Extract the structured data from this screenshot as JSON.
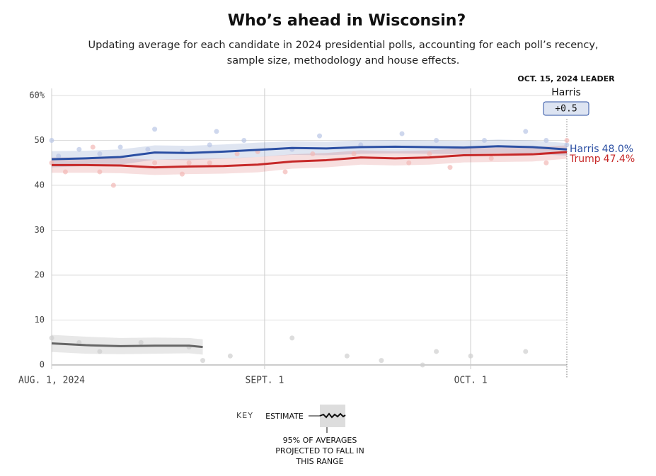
{
  "chart_data": {
    "type": "line",
    "title": "Who’s ahead in Wisconsin?",
    "subtitle": [
      "Updating average for each candidate in 2024 presidential polls, accounting for each poll’s recency,",
      "sample size, methodology and house effects."
    ],
    "x": [
      "2024-08-01",
      "2024-08-06",
      "2024-08-11",
      "2024-08-16",
      "2024-08-21",
      "2024-08-26",
      "2024-08-31",
      "2024-09-05",
      "2024-09-10",
      "2024-09-15",
      "2024-09-20",
      "2024-09-25",
      "2024-09-30",
      "2024-10-05",
      "2024-10-10",
      "2024-10-15"
    ],
    "xlim": [
      "2024-08-01",
      "2024-10-15"
    ],
    "xticks": [
      {
        "value": "2024-08-01",
        "label": "AUG. 1, 2024"
      },
      {
        "value": "2024-09-01",
        "label": "SEPT. 1"
      },
      {
        "value": "2024-10-01",
        "label": "OCT. 1"
      }
    ],
    "ylim": [
      0,
      60
    ],
    "yticks": [
      0,
      10,
      20,
      30,
      40,
      50,
      {
        "value": 60,
        "label": "60%"
      }
    ],
    "grid": true,
    "series": [
      {
        "name": "Harris",
        "color": "#2b4fa3",
        "end_label": "48.0%",
        "values": [
          45.8,
          46.0,
          46.3,
          47.3,
          47.2,
          47.5,
          47.9,
          48.3,
          48.2,
          48.5,
          48.6,
          48.5,
          48.4,
          48.7,
          48.5,
          48.0
        ],
        "upper": [
          47.6,
          47.7,
          48.0,
          48.9,
          48.8,
          49.1,
          49.5,
          49.8,
          49.7,
          50.0,
          50.1,
          50.0,
          49.9,
          50.2,
          50.0,
          49.4
        ],
        "lower": [
          44.0,
          44.3,
          44.6,
          45.7,
          45.6,
          45.9,
          46.3,
          46.8,
          46.7,
          47.0,
          47.1,
          47.0,
          46.9,
          47.2,
          47.0,
          46.6
        ],
        "polls_x": [
          "2024-08-01",
          "2024-08-02",
          "2024-08-05",
          "2024-08-08",
          "2024-08-11",
          "2024-08-15",
          "2024-08-16",
          "2024-08-20",
          "2024-08-24",
          "2024-08-25",
          "2024-08-29",
          "2024-09-05",
          "2024-09-09",
          "2024-09-15",
          "2024-09-21",
          "2024-09-26",
          "2024-10-03",
          "2024-10-09",
          "2024-10-12",
          "2024-10-15"
        ],
        "polls_y": [
          50,
          46.5,
          48,
          47,
          48.5,
          48,
          52.5,
          47.5,
          49,
          52,
          50,
          48,
          51,
          49,
          51.5,
          50,
          50,
          52,
          50,
          49
        ]
      },
      {
        "name": "Trump",
        "color": "#c62828",
        "end_label": "47.4%",
        "values": [
          44.5,
          44.5,
          44.4,
          44.0,
          44.2,
          44.3,
          44.6,
          45.3,
          45.6,
          46.2,
          46.0,
          46.2,
          46.7,
          46.8,
          46.9,
          47.4
        ],
        "upper": [
          46.2,
          46.2,
          46.1,
          45.7,
          45.9,
          46.0,
          46.3,
          46.9,
          47.2,
          47.8,
          47.6,
          47.8,
          48.3,
          48.4,
          48.5,
          48.9
        ],
        "lower": [
          42.8,
          42.8,
          42.7,
          42.3,
          42.5,
          42.6,
          42.9,
          43.7,
          44.0,
          44.6,
          44.4,
          44.6,
          45.1,
          45.2,
          45.3,
          45.9
        ],
        "polls_x": [
          "2024-08-01",
          "2024-08-03",
          "2024-08-07",
          "2024-08-08",
          "2024-08-10",
          "2024-08-16",
          "2024-08-20",
          "2024-08-21",
          "2024-08-24",
          "2024-08-28",
          "2024-08-31",
          "2024-09-04",
          "2024-09-08",
          "2024-09-14",
          "2024-09-22",
          "2024-09-25",
          "2024-09-28",
          "2024-10-04",
          "2024-10-12",
          "2024-10-15"
        ],
        "polls_y": [
          45,
          43,
          48.5,
          43,
          40,
          45,
          42.5,
          45,
          45,
          47,
          47.5,
          43,
          47,
          47,
          45,
          47,
          44,
          46,
          45,
          50
        ]
      },
      {
        "color": "#666666",
        "x": [
          "2024-08-01",
          "2024-08-06",
          "2024-08-11",
          "2024-08-16",
          "2024-08-21",
          "2024-08-23"
        ],
        "values": [
          4.8,
          4.4,
          4.2,
          4.3,
          4.3,
          4.0
        ],
        "upper": [
          6.7,
          6.3,
          6.0,
          6.1,
          6.0,
          5.7
        ],
        "lower": [
          2.9,
          2.5,
          2.4,
          2.5,
          2.6,
          2.3
        ],
        "polls_x": [
          "2024-08-01",
          "2024-08-05",
          "2024-08-08",
          "2024-08-14",
          "2024-08-21",
          "2024-08-23",
          "2024-08-27",
          "2024-09-05",
          "2024-09-13",
          "2024-09-18",
          "2024-09-24",
          "2024-09-26",
          "2024-10-01",
          "2024-10-09"
        ],
        "polls_y": [
          6,
          5,
          3,
          5,
          4,
          1,
          2,
          6,
          2,
          1,
          0,
          3,
          2,
          3
        ]
      }
    ],
    "leader": {
      "title": "OCT. 15, 2024 LEADER",
      "name": "Harris",
      "margin": "+0.5"
    },
    "key": {
      "title": "KEY",
      "estimate": "ESTIMATE",
      "note": [
        "95% OF AVERAGES",
        "PROJECTED TO FALL IN",
        "THIS RANGE"
      ]
    }
  }
}
